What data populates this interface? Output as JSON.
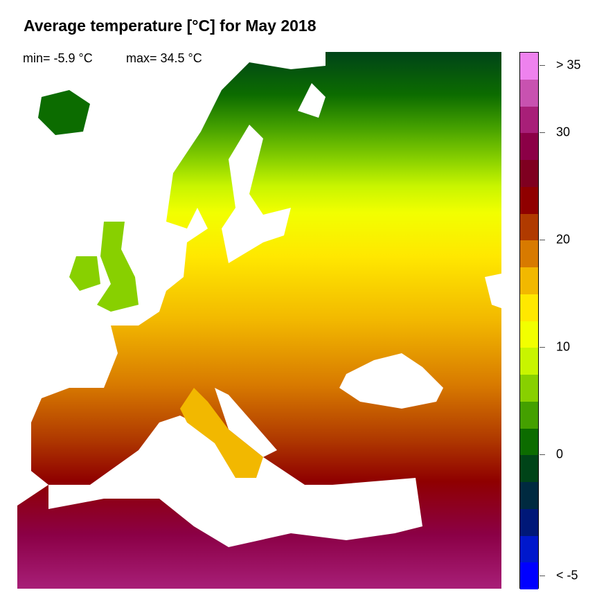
{
  "title": "Average temperature [°C] for May 2018",
  "stats": {
    "min_label": "min= -5.9 °C",
    "max_label": "max= 34.5 °C"
  },
  "legend": {
    "colors": [
      "#EE82EE",
      "#C852B0",
      "#A81F78",
      "#8B0046",
      "#7F0020",
      "#8F0000",
      "#B03A00",
      "#D87A00",
      "#F2B800",
      "#FFE800",
      "#F2FF00",
      "#C8F500",
      "#88D000",
      "#44A000",
      "#0C6C00",
      "#004418",
      "#002A40",
      "#001878",
      "#0018CC",
      "#0000FF"
    ],
    "ticks": [
      {
        "label": "> 35",
        "value": 35
      },
      {
        "label": "30",
        "value": 30
      },
      {
        "label": "20",
        "value": 20
      },
      {
        "label": "10",
        "value": 10
      },
      {
        "label": "0",
        "value": 0
      },
      {
        "label": "< -5",
        "value": -5
      }
    ]
  }
}
